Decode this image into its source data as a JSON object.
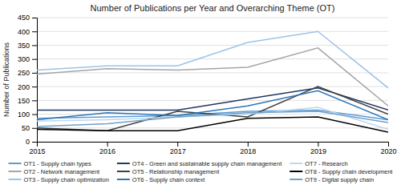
{
  "chart_data": {
    "type": "line",
    "title": "Number of Publications per Year and Overarching Theme (OT)",
    "ylabel": "Number of Publications",
    "x": [
      2015,
      2016,
      2017,
      2018,
      2019,
      2020
    ],
    "xlim": [
      2015,
      2020
    ],
    "xticks": [
      2015,
      2016,
      2017,
      2018,
      2019,
      2020
    ],
    "ylim": [
      0,
      450
    ],
    "yticks": [
      0,
      50,
      100,
      150,
      200,
      250,
      300,
      350,
      400,
      450
    ],
    "grid": true,
    "legend": "bottom",
    "series": [
      {
        "name": "OT1 - Supply chain types",
        "color": "#5B9BD5",
        "values": [
          85,
          90,
          95,
          110,
          115,
          80
        ]
      },
      {
        "name": "OT2 - Network management",
        "color": "#A5A5A5",
        "values": [
          245,
          265,
          260,
          270,
          340,
          130
        ]
      },
      {
        "name": "OT3 - Supply chain optimization",
        "color": "#9DC3E6",
        "values": [
          260,
          275,
          275,
          360,
          400,
          195
        ]
      },
      {
        "name": "OT4 - Green and sustainable supply chain management",
        "color": "#1F3864",
        "values": [
          115,
          115,
          115,
          155,
          195,
          115
        ]
      },
      {
        "name": "OT5 - Relationship management",
        "color": "#404040",
        "values": [
          50,
          40,
          110,
          90,
          200,
          100
        ]
      },
      {
        "name": "OT6 - Supply chain context",
        "color": "#2E75B6",
        "values": [
          80,
          105,
          95,
          130,
          185,
          80
        ]
      },
      {
        "name": "OT7 - Research",
        "color": "#BDD7EE",
        "values": [
          75,
          80,
          90,
          100,
          125,
          45
        ]
      },
      {
        "name": "OT8 - Supply chain development",
        "color": "#000000",
        "values": [
          45,
          40,
          40,
          85,
          90,
          35
        ]
      },
      {
        "name": "OT9 - Digital supply chain",
        "color": "#70A0C8",
        "values": [
          55,
          65,
          90,
          105,
          110,
          70
        ]
      }
    ]
  }
}
